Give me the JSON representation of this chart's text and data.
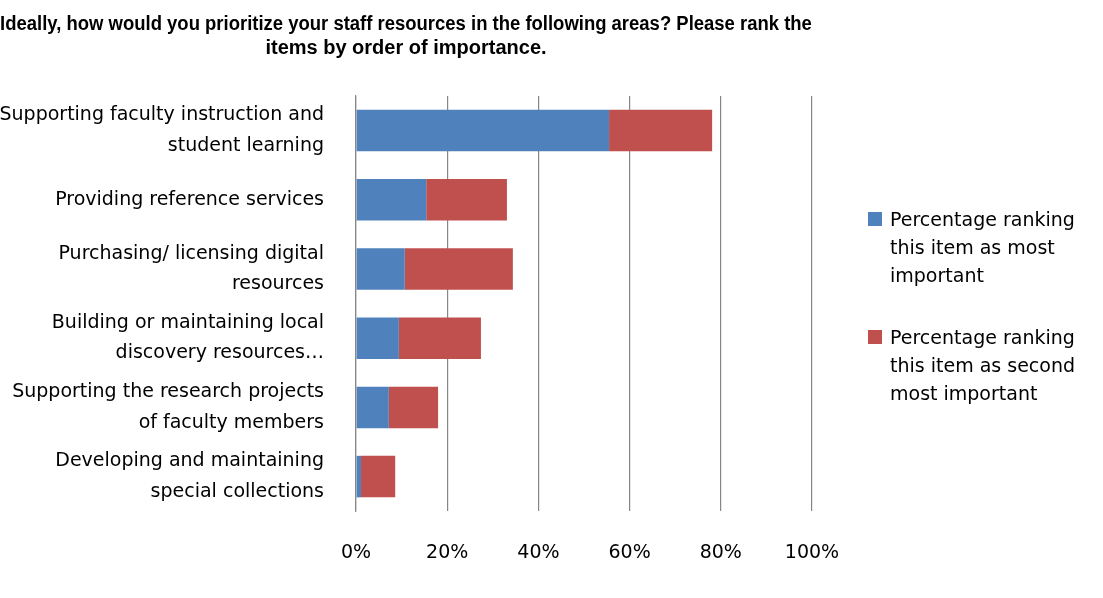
{
  "chart_data": {
    "type": "bar",
    "orientation": "horizontal",
    "stacked": true,
    "title": "Ideally, how would you prioritize your staff resources in the following areas? Please rank the items by order of importance.",
    "categories": [
      "Supporting faculty instruction and student learning",
      "Providing reference services",
      "Purchasing/ licensing digital resources",
      "Building or maintaining local discovery resources…",
      "Supporting the research projects of faculty members",
      "Developing and maintaining special collections"
    ],
    "series": [
      {
        "name": "Percentage ranking this item as most important",
        "color": "#4f81bd",
        "values": [
          55.5,
          15.4,
          10.7,
          9.4,
          7.2,
          1.1
        ]
      },
      {
        "name": "Percentage ranking this item as second most important",
        "color": "#c0504d",
        "values": [
          22.6,
          17.7,
          23.7,
          18,
          10.8,
          7.5
        ]
      }
    ],
    "xlim": [
      0,
      100
    ],
    "xticks": [
      {
        "value": 0,
        "label": "0%"
      },
      {
        "value": 20,
        "label": "20%"
      },
      {
        "value": 40,
        "label": "40%"
      },
      {
        "value": 60,
        "label": "60%"
      },
      {
        "value": 80,
        "label": "80%"
      },
      {
        "value": 100,
        "label": "100%"
      }
    ],
    "grid": "x",
    "legend": "right"
  }
}
